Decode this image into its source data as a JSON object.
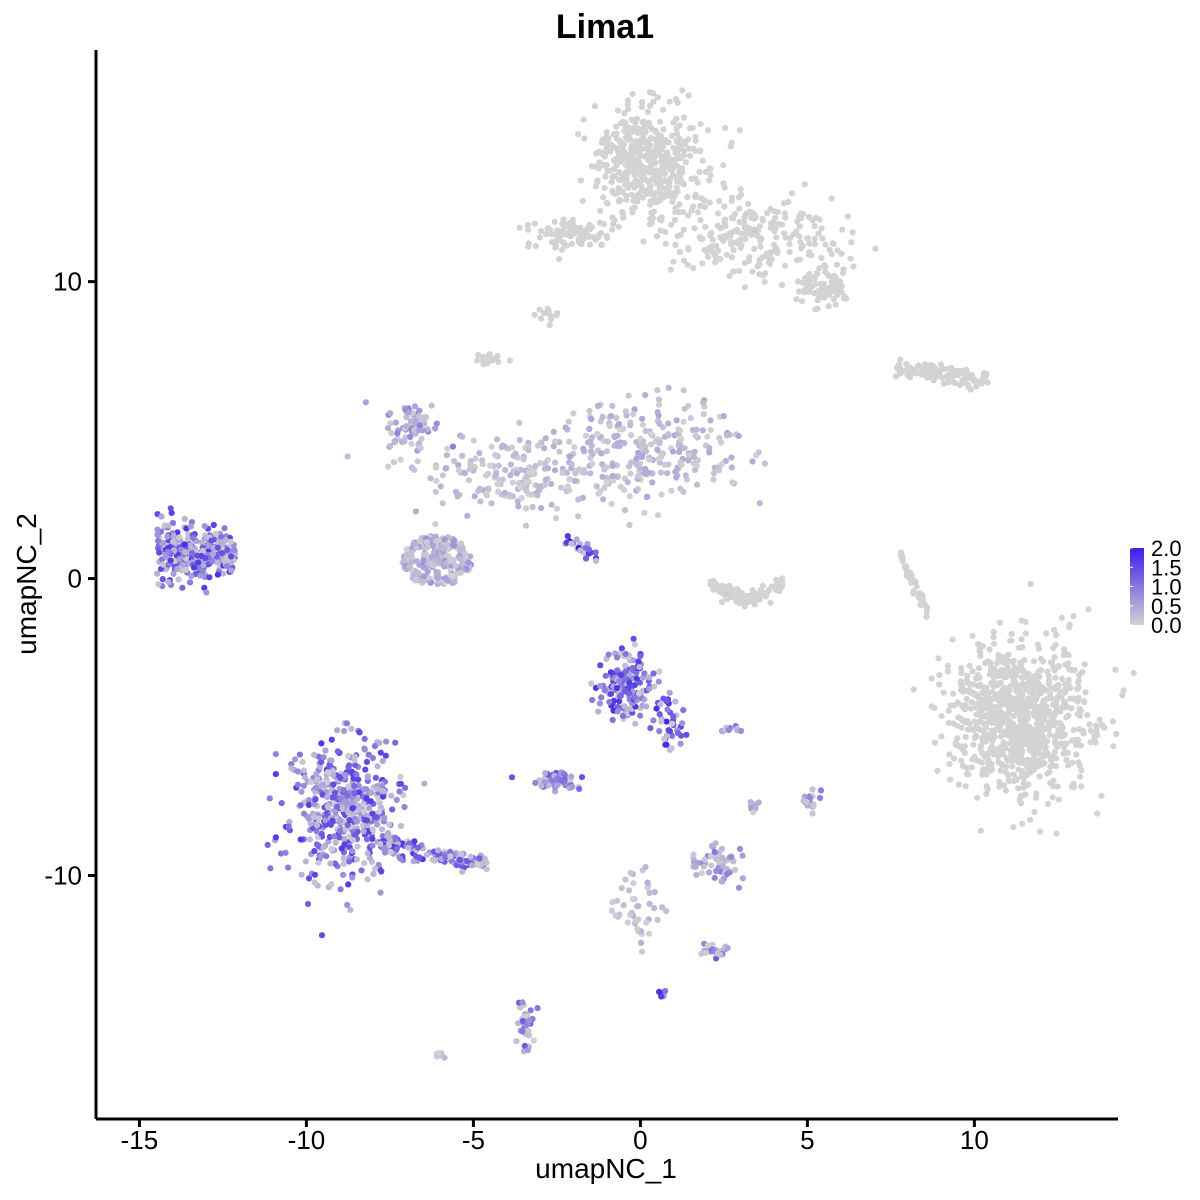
{
  "chart_data": {
    "type": "scatter",
    "title": "Lima1",
    "xlabel": "umapNC_1",
    "ylabel": "umapNC_2",
    "xlim": [
      -16.3,
      14.3
    ],
    "ylim": [
      -18.2,
      17.8
    ],
    "xticks": [
      -15,
      -10,
      -5,
      0,
      5,
      10
    ],
    "xtick_labels": [
      "-15",
      "-10",
      "-5",
      "0",
      "5",
      "10"
    ],
    "yticks": [
      -10,
      0,
      10
    ],
    "ytick_labels": [
      "-10",
      "0",
      "10"
    ],
    "grid": false,
    "legend": {
      "placement": "right",
      "type": "colorbar",
      "range": [
        0,
        2.0
      ],
      "tick_values": [
        2.0,
        1.5,
        1.0,
        0.5,
        0.0
      ],
      "tick_labels": [
        "2.0",
        "1.5",
        "1.0",
        "0.5",
        "0.0"
      ],
      "low_color": "#d3d3d3",
      "high_color": "#3a1ee8"
    },
    "clusters": [
      {
        "center": [
          -13.3,
          0.9
        ],
        "spread": [
          0.9,
          0.6
        ],
        "n": 320,
        "expression": 1.05,
        "shape": "fan"
      },
      {
        "center": [
          -8.9,
          -7.8
        ],
        "spread": [
          1.1,
          1.6
        ],
        "n": 520,
        "expression": 1.0,
        "shape": "blob"
      },
      {
        "center": [
          -6.2,
          -9.3
        ],
        "spread": [
          1.6,
          0.4
        ],
        "n": 140,
        "expression": 1.05,
        "shape": "tail"
      },
      {
        "center": [
          -6.1,
          0.6
        ],
        "spread": [
          1.0,
          0.8
        ],
        "n": 260,
        "expression": 0.45,
        "shape": "ring"
      },
      {
        "center": [
          -6.8,
          5.2
        ],
        "spread": [
          0.6,
          0.5
        ],
        "n": 70,
        "expression": 0.55,
        "shape": "blob"
      },
      {
        "center": [
          -3.5,
          3.5
        ],
        "spread": [
          2.5,
          1.0
        ],
        "n": 220,
        "expression": 0.25,
        "shape": "branch"
      },
      {
        "center": [
          0.4,
          4.5
        ],
        "spread": [
          2.0,
          1.1
        ],
        "n": 230,
        "expression": 0.3,
        "shape": "blob"
      },
      {
        "center": [
          -1.8,
          1.0
        ],
        "spread": [
          0.5,
          0.3
        ],
        "n": 25,
        "expression": 1.35,
        "shape": "streak"
      },
      {
        "center": [
          3.2,
          -0.4
        ],
        "spread": [
          1.1,
          0.5
        ],
        "n": 130,
        "expression": 0.1,
        "shape": "arc"
      },
      {
        "center": [
          0.2,
          14.0
        ],
        "spread": [
          1.2,
          1.3
        ],
        "n": 480,
        "expression": 0.03,
        "shape": "blob"
      },
      {
        "center": [
          3.5,
          11.5
        ],
        "spread": [
          1.8,
          1.0
        ],
        "n": 230,
        "expression": 0.06,
        "shape": "blob"
      },
      {
        "center": [
          5.4,
          9.8
        ],
        "spread": [
          0.5,
          0.5
        ],
        "n": 80,
        "expression": 0.1,
        "shape": "blob"
      },
      {
        "center": [
          -2.1,
          11.6
        ],
        "spread": [
          0.9,
          0.4
        ],
        "n": 100,
        "expression": 0.05,
        "shape": "blob"
      },
      {
        "center": [
          -2.8,
          8.9
        ],
        "spread": [
          0.3,
          0.2
        ],
        "n": 14,
        "expression": 0.0,
        "shape": "blob"
      },
      {
        "center": [
          -4.5,
          7.4
        ],
        "spread": [
          0.3,
          0.2
        ],
        "n": 18,
        "expression": 0.0,
        "shape": "blob"
      },
      {
        "center": [
          9.0,
          6.9
        ],
        "spread": [
          1.4,
          0.3
        ],
        "n": 120,
        "expression": 0.02,
        "shape": "streak"
      },
      {
        "center": [
          8.2,
          -0.2
        ],
        "spread": [
          0.4,
          1.2
        ],
        "n": 40,
        "expression": 0.02,
        "shape": "streak"
      },
      {
        "center": [
          11.3,
          -4.7
        ],
        "spread": [
          1.5,
          1.8
        ],
        "n": 900,
        "expression": 0.02,
        "shape": "blob"
      },
      {
        "center": [
          -0.4,
          -3.6
        ],
        "spread": [
          0.6,
          0.8
        ],
        "n": 170,
        "expression": 1.05,
        "shape": "blob"
      },
      {
        "center": [
          0.9,
          -4.8
        ],
        "spread": [
          0.4,
          0.7
        ],
        "n": 40,
        "expression": 1.1,
        "shape": "blob"
      },
      {
        "center": [
          -2.5,
          -6.8
        ],
        "spread": [
          0.4,
          0.2
        ],
        "n": 60,
        "expression": 0.9,
        "shape": "blob"
      },
      {
        "center": [
          2.3,
          -9.6
        ],
        "spread": [
          0.5,
          0.4
        ],
        "n": 55,
        "expression": 0.6,
        "shape": "blob"
      },
      {
        "center": [
          0.0,
          -11.0
        ],
        "spread": [
          0.6,
          0.9
        ],
        "n": 45,
        "expression": 0.25,
        "shape": "blob"
      },
      {
        "center": [
          2.2,
          -12.6
        ],
        "spread": [
          0.3,
          0.2
        ],
        "n": 25,
        "expression": 0.8,
        "shape": "blob"
      },
      {
        "center": [
          -3.4,
          -14.9
        ],
        "spread": [
          0.2,
          0.7
        ],
        "n": 40,
        "expression": 0.8,
        "shape": "blob"
      },
      {
        "center": [
          5.1,
          -7.5
        ],
        "spread": [
          0.2,
          0.3
        ],
        "n": 18,
        "expression": 0.6,
        "shape": "blob"
      },
      {
        "center": [
          2.7,
          -5.1
        ],
        "spread": [
          0.3,
          0.1
        ],
        "n": 12,
        "expression": 0.8,
        "shape": "blob"
      },
      {
        "center": [
          3.4,
          -7.7
        ],
        "spread": [
          0.1,
          0.2
        ],
        "n": 8,
        "expression": 0.5,
        "shape": "blob"
      },
      {
        "center": [
          -6.0,
          -16.0
        ],
        "spread": [
          0.1,
          0.1
        ],
        "n": 6,
        "expression": 0.2,
        "shape": "blob"
      },
      {
        "center": [
          0.7,
          -14.0
        ],
        "spread": [
          0.1,
          0.1
        ],
        "n": 5,
        "expression": 1.5,
        "shape": "blob"
      }
    ]
  }
}
